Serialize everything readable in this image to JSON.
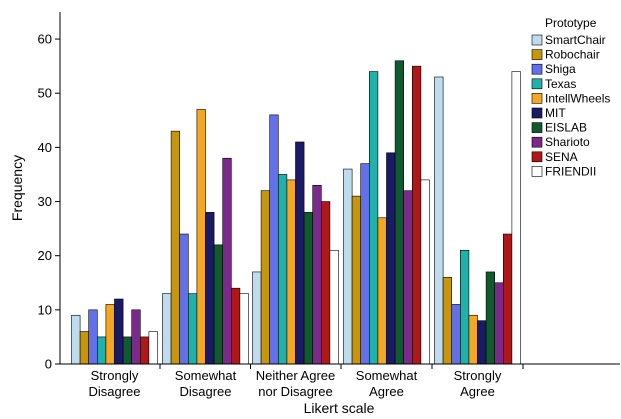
{
  "chart_data": {
    "type": "bar",
    "title": "",
    "xlabel": "Likert scale",
    "ylabel": "Frequency",
    "ylim": [
      0,
      65
    ],
    "yticks": [
      0,
      10,
      20,
      30,
      40,
      50,
      60
    ],
    "grid": false,
    "legend_placement": "top-right",
    "legend_title": "Prototype",
    "categories": [
      [
        "Strongly",
        "Disagree"
      ],
      [
        "Somewhat",
        "Disagree"
      ],
      [
        "Neither Agree",
        "nor Disagree"
      ],
      [
        "Somewhat",
        "Agree"
      ],
      [
        "Strongly",
        "Agree"
      ]
    ],
    "series": [
      {
        "name": "SmartChair",
        "color": "#bfdcef",
        "values": [
          9,
          13,
          17,
          36,
          53
        ]
      },
      {
        "name": "Robochair",
        "color": "#c8960c",
        "values": [
          6,
          43,
          32,
          31,
          16
        ]
      },
      {
        "name": "Shiga",
        "color": "#6370e8",
        "values": [
          10,
          24,
          46,
          37,
          11
        ]
      },
      {
        "name": "Texas",
        "color": "#20b2aa",
        "values": [
          5,
          13,
          35,
          54,
          21
        ]
      },
      {
        "name": "IntellWheels",
        "color": "#f5a623",
        "values": [
          11,
          47,
          34,
          27,
          9
        ]
      },
      {
        "name": "MIT",
        "color": "#1a1a66",
        "values": [
          12,
          28,
          41,
          39,
          8
        ]
      },
      {
        "name": "EISLAB",
        "color": "#0f5a2e",
        "values": [
          5,
          22,
          28,
          56,
          17
        ]
      },
      {
        "name": "Sharioto",
        "color": "#7b2a8c",
        "values": [
          10,
          38,
          33,
          32,
          15
        ]
      },
      {
        "name": "SENA",
        "color": "#b01818",
        "values": [
          5,
          14,
          30,
          55,
          24
        ]
      },
      {
        "name": "FRIENDII",
        "color": "#ffffff",
        "values": [
          6,
          13,
          21,
          34,
          54
        ]
      }
    ]
  }
}
